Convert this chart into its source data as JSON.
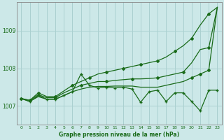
{
  "title": "Graphe pression niveau de la mer (hPa)",
  "bg_color": "#cce8e8",
  "grid_color": "#aad0d0",
  "line_color": "#1a6b1a",
  "text_color": "#1a6b1a",
  "x_values": [
    0,
    1,
    2,
    3,
    4,
    5,
    6,
    7,
    8,
    9,
    10,
    11,
    12,
    13,
    14,
    15,
    16,
    17,
    18,
    19,
    20,
    21,
    22,
    23
  ],
  "ylim": [
    1006.5,
    1009.75
  ],
  "yticks": [
    1007,
    1008,
    1009
  ],
  "series1_smooth_top": [
    1007.2,
    1007.15,
    1007.35,
    1007.25,
    1007.25,
    1007.4,
    1007.55,
    1007.65,
    1007.75,
    1007.85,
    1007.9,
    1007.95,
    1008.0,
    1008.05,
    1008.1,
    1008.15,
    1008.2,
    1008.3,
    1008.45,
    1008.6,
    1008.8,
    1009.15,
    1009.45,
    1009.62
  ],
  "series2_smooth_mid": [
    1007.2,
    1007.15,
    1007.3,
    1007.22,
    1007.22,
    1007.35,
    1007.45,
    1007.55,
    1007.6,
    1007.65,
    1007.65,
    1007.68,
    1007.7,
    1007.72,
    1007.72,
    1007.73,
    1007.75,
    1007.8,
    1007.85,
    1007.9,
    1008.15,
    1008.5,
    1008.55,
    1009.62
  ],
  "series3_smooth_lower": [
    1007.2,
    1007.12,
    1007.25,
    1007.18,
    1007.18,
    1007.28,
    1007.38,
    1007.45,
    1007.5,
    1007.52,
    1007.52,
    1007.53,
    1007.53,
    1007.53,
    1007.5,
    1007.5,
    1007.5,
    1007.55,
    1007.6,
    1007.65,
    1007.75,
    1007.85,
    1007.95,
    1009.62
  ],
  "series4_oscillating": [
    1007.2,
    1007.12,
    1007.28,
    1007.18,
    1007.18,
    1007.28,
    1007.38,
    1007.85,
    1007.55,
    1007.48,
    1007.5,
    1007.48,
    1007.5,
    1007.45,
    1007.1,
    1007.38,
    1007.42,
    1007.12,
    1007.35,
    1007.35,
    1007.12,
    1006.87,
    1007.42,
    1007.42
  ],
  "marker_series1": "D",
  "marker_series2": "D",
  "marker_series3": "D",
  "marker_series4": "+"
}
